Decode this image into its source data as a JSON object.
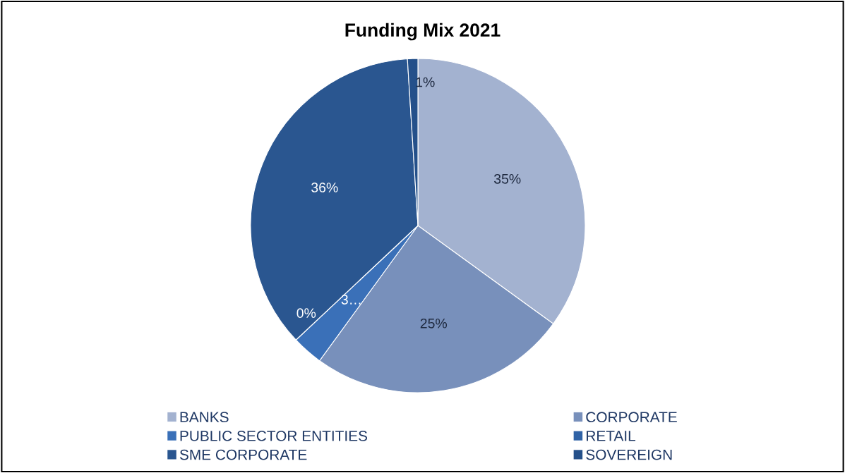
{
  "chart_data": {
    "type": "pie",
    "title": "Funding Mix 2021",
    "categories": [
      "BANKS",
      "CORPORATE",
      "PUBLIC SECTOR ENTITIES",
      "RETAIL",
      "SME CORPORATE",
      "SOVEREIGN"
    ],
    "values": [
      35,
      25,
      3,
      0,
      36,
      1
    ],
    "value_labels": [
      "35%",
      "25%",
      "3…",
      "0%",
      "36%",
      "1%"
    ],
    "colors": [
      "#a3b2d0",
      "#7890bb",
      "#3a70b8",
      "#2f62a6",
      "#2a5690",
      "#24508a"
    ],
    "legend": "bottom"
  }
}
